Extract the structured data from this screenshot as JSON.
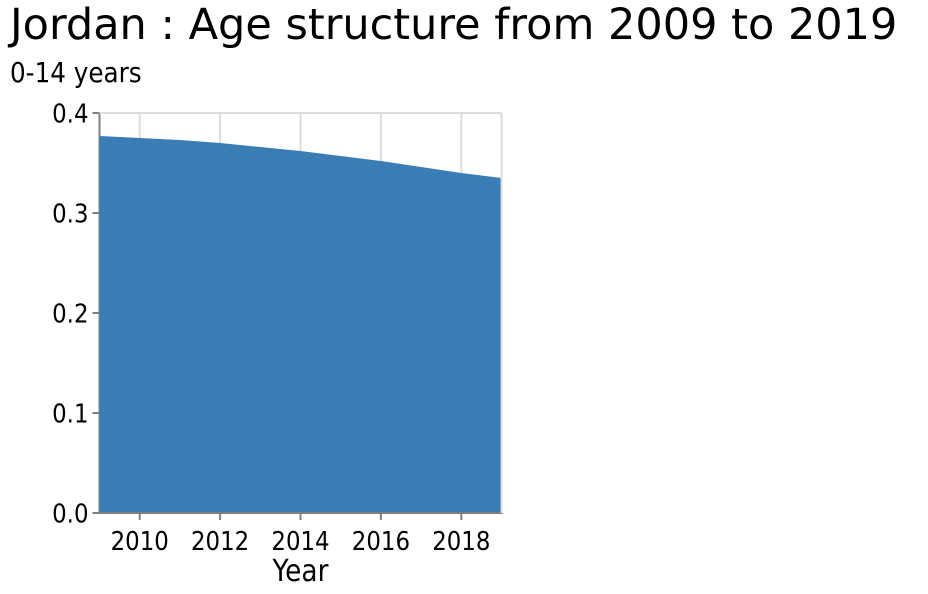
{
  "chart_data": {
    "type": "area",
    "title": "Jordan : Age structure from 2009 to 2019",
    "subtitle": "0-14 years",
    "xlabel": "Year",
    "ylabel": "",
    "x": [
      2009,
      2010,
      2011,
      2012,
      2013,
      2014,
      2015,
      2016,
      2017,
      2018,
      2019
    ],
    "values": [
      0.377,
      0.375,
      0.373,
      0.37,
      0.366,
      0.362,
      0.357,
      0.352,
      0.346,
      0.34,
      0.335
    ],
    "series_name": "0-14 years",
    "xlim": [
      2009,
      2019
    ],
    "ylim": [
      0.0,
      0.4
    ],
    "xticks": [
      2010,
      2012,
      2014,
      2016,
      2018
    ],
    "yticks": [
      0.0,
      0.1,
      0.2,
      0.3,
      0.4
    ],
    "ytick_labels": [
      "0.0",
      "0.1",
      "0.2",
      "0.3",
      "0.4"
    ],
    "grid": true,
    "legend": false,
    "colors": {
      "fill": "#3a7db5",
      "spine": "#7f7f7f",
      "grid": "#dcdcdc",
      "text": "#000000",
      "background": "#ffffff"
    }
  }
}
